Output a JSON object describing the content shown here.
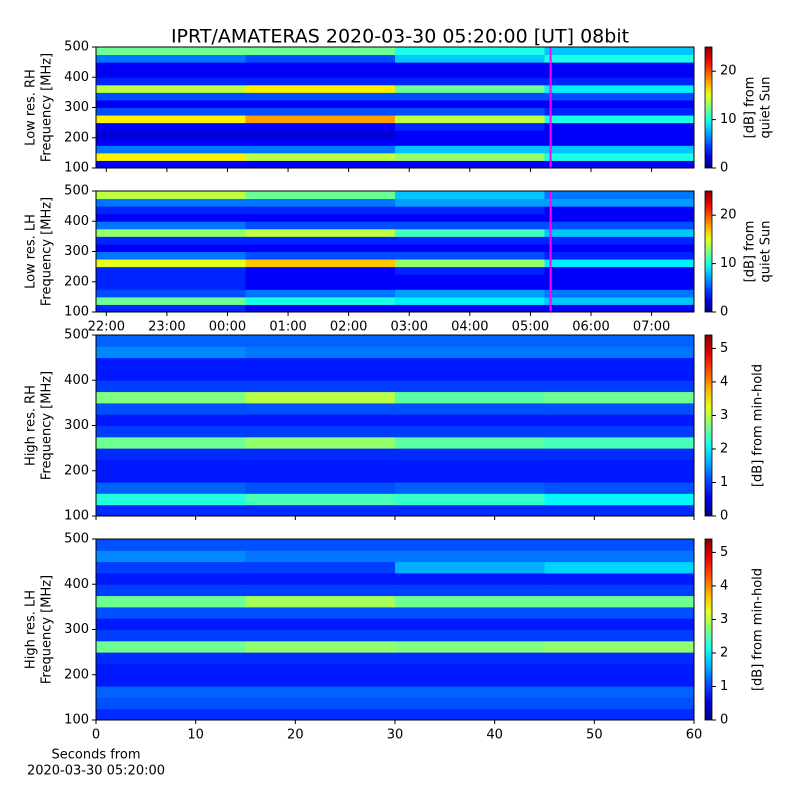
{
  "chart_data": [
    {
      "type": "heatmap",
      "title": "IPRT/AMATERAS 2020-03-30 05:20:00 [UT]   08bit",
      "ylabel": [
        "Low res. RH",
        "Frequency [MHz]"
      ],
      "xlim": [
        21.83,
        31.7
      ],
      "ylim": [
        100,
        500
      ],
      "yticks": [
        100,
        200,
        300,
        400,
        500
      ],
      "xticks": [
        {
          "value": 22,
          "label": "22:00"
        },
        {
          "value": 23,
          "label": "23:00"
        },
        {
          "value": 24,
          "label": "00:00"
        },
        {
          "value": 25,
          "label": "01:00"
        },
        {
          "value": 26,
          "label": "02:00"
        },
        {
          "value": 27,
          "label": "03:00"
        },
        {
          "value": 28,
          "label": "04:00"
        },
        {
          "value": 29,
          "label": "05:00"
        },
        {
          "value": 30,
          "label": "06:00"
        },
        {
          "value": 31,
          "label": "07:00"
        }
      ],
      "xticklabels": false,
      "vline": 29.333,
      "vline_color": "#ff00ff",
      "zlim": [
        0,
        25
      ],
      "cticks": [
        0,
        10,
        20
      ],
      "clabel": [
        "[dB] from",
        "quiet Sun"
      ],
      "z": [
        [
          3,
          3,
          3,
          3
        ],
        [
          16,
          14,
          13,
          10
        ],
        [
          6,
          6,
          8,
          8
        ],
        [
          3,
          3,
          3,
          3
        ],
        [
          2,
          2,
          3,
          3
        ],
        [
          3,
          3,
          4,
          3
        ],
        [
          16,
          18,
          14,
          10
        ],
        [
          5,
          5,
          5,
          4
        ],
        [
          3,
          3,
          3,
          3
        ],
        [
          5,
          5,
          5,
          5
        ],
        [
          14,
          16,
          12,
          9
        ],
        [
          4,
          4,
          4,
          4
        ],
        [
          3,
          3,
          3,
          3
        ],
        [
          3,
          3,
          3,
          3
        ],
        [
          6,
          5,
          8,
          10
        ],
        [
          12,
          12,
          10,
          8
        ]
      ]
    },
    {
      "type": "heatmap",
      "ylabel": [
        "Low res. LH",
        "Frequency [MHz]"
      ],
      "xlim": [
        21.83,
        31.7
      ],
      "ylim": [
        100,
        500
      ],
      "yticks": [
        100,
        200,
        300,
        400,
        500
      ],
      "xticks": [
        {
          "value": 22,
          "label": "22:00"
        },
        {
          "value": 23,
          "label": "23:00"
        },
        {
          "value": 24,
          "label": "00:00"
        },
        {
          "value": 25,
          "label": "01:00"
        },
        {
          "value": 26,
          "label": "02:00"
        },
        {
          "value": 27,
          "label": "03:00"
        },
        {
          "value": 28,
          "label": "04:00"
        },
        {
          "value": 29,
          "label": "05:00"
        },
        {
          "value": 30,
          "label": "06:00"
        },
        {
          "value": 31,
          "label": "07:00"
        }
      ],
      "xticklabels": true,
      "vline": 29.333,
      "vline_color": "#ff00ff",
      "zlim": [
        0,
        25
      ],
      "cticks": [
        0,
        10,
        20
      ],
      "clabel": [
        "[dB] from",
        "quiet Sun"
      ],
      "z": [
        [
          4,
          3,
          3,
          3
        ],
        [
          12,
          10,
          9,
          8
        ],
        [
          5,
          6,
          7,
          6
        ],
        [
          4,
          3,
          3,
          3
        ],
        [
          4,
          3,
          3,
          3
        ],
        [
          4,
          3,
          4,
          3
        ],
        [
          15,
          17,
          13,
          9
        ],
        [
          6,
          5,
          5,
          4
        ],
        [
          3,
          3,
          3,
          3
        ],
        [
          4,
          4,
          4,
          4
        ],
        [
          13,
          14,
          11,
          8
        ],
        [
          6,
          5,
          5,
          5
        ],
        [
          3,
          3,
          3,
          3
        ],
        [
          4,
          4,
          4,
          3
        ],
        [
          6,
          6,
          7,
          7
        ],
        [
          14,
          12,
          8,
          6
        ]
      ]
    },
    {
      "type": "heatmap",
      "ylabel": [
        "High res. RH",
        "Frequency [MHz]"
      ],
      "xlim": [
        0,
        60
      ],
      "ylim": [
        100,
        500
      ],
      "yticks": [
        100,
        200,
        300,
        400,
        500
      ],
      "xticks": [
        0,
        10,
        20,
        30,
        40,
        50,
        60
      ],
      "xticklabels": false,
      "zlim": [
        0,
        5.4
      ],
      "cticks": [
        0,
        1,
        2,
        3,
        4,
        5
      ],
      "clabel": [
        "[dB] from min-hold"
      ],
      "z": [
        [
          0.9,
          0.9,
          0.9,
          0.9
        ],
        [
          2.2,
          2.4,
          2.3,
          2.0
        ],
        [
          1.2,
          1.1,
          1.2,
          1.1
        ],
        [
          0.8,
          0.8,
          0.8,
          0.8
        ],
        [
          0.8,
          0.8,
          0.8,
          0.8
        ],
        [
          0.9,
          0.9,
          0.9,
          0.9
        ],
        [
          2.6,
          2.8,
          2.5,
          2.4
        ],
        [
          1.0,
          1.0,
          1.0,
          1.0
        ],
        [
          0.8,
          0.8,
          0.8,
          0.8
        ],
        [
          1.1,
          1.1,
          1.1,
          1.1
        ],
        [
          2.7,
          3.0,
          2.5,
          2.6
        ],
        [
          1.0,
          1.0,
          1.0,
          1.0
        ],
        [
          0.8,
          0.8,
          0.8,
          0.8
        ],
        [
          0.8,
          0.8,
          0.8,
          0.8
        ],
        [
          1.4,
          1.3,
          1.3,
          1.3
        ],
        [
          1.2,
          1.2,
          1.2,
          1.2
        ]
      ]
    },
    {
      "type": "heatmap",
      "ylabel": [
        "High res. LH",
        "Frequency [MHz]"
      ],
      "xlim": [
        0,
        60
      ],
      "ylim": [
        100,
        500
      ],
      "yticks": [
        100,
        200,
        300,
        400,
        500
      ],
      "xticks": [
        0,
        10,
        20,
        30,
        40,
        50,
        60
      ],
      "xticklabels": true,
      "xlabel": [
        "Seconds from",
        "2020-03-30 05:20:00"
      ],
      "zlim": [
        0,
        5.4
      ],
      "cticks": [
        0,
        1,
        2,
        3,
        4,
        5
      ],
      "clabel": [
        "[dB] from min-hold"
      ],
      "z": [
        [
          0.9,
          0.9,
          0.9,
          0.9
        ],
        [
          1.1,
          1.1,
          1.1,
          1.1
        ],
        [
          1.2,
          1.2,
          1.2,
          1.2
        ],
        [
          0.8,
          0.8,
          0.8,
          0.8
        ],
        [
          0.8,
          0.8,
          0.8,
          0.8
        ],
        [
          0.9,
          0.9,
          0.9,
          0.9
        ],
        [
          2.6,
          2.8,
          2.7,
          2.8
        ],
        [
          1.0,
          1.0,
          1.0,
          1.0
        ],
        [
          0.8,
          0.8,
          0.8,
          0.8
        ],
        [
          1.1,
          1.1,
          1.1,
          1.1
        ],
        [
          2.6,
          2.9,
          2.6,
          2.6
        ],
        [
          1.0,
          1.0,
          1.0,
          1.0
        ],
        [
          0.8,
          0.8,
          0.8,
          0.8
        ],
        [
          1.0,
          1.0,
          1.6,
          1.8
        ],
        [
          1.4,
          1.3,
          1.3,
          1.3
        ],
        [
          1.1,
          1.1,
          1.1,
          1.1
        ]
      ]
    }
  ]
}
